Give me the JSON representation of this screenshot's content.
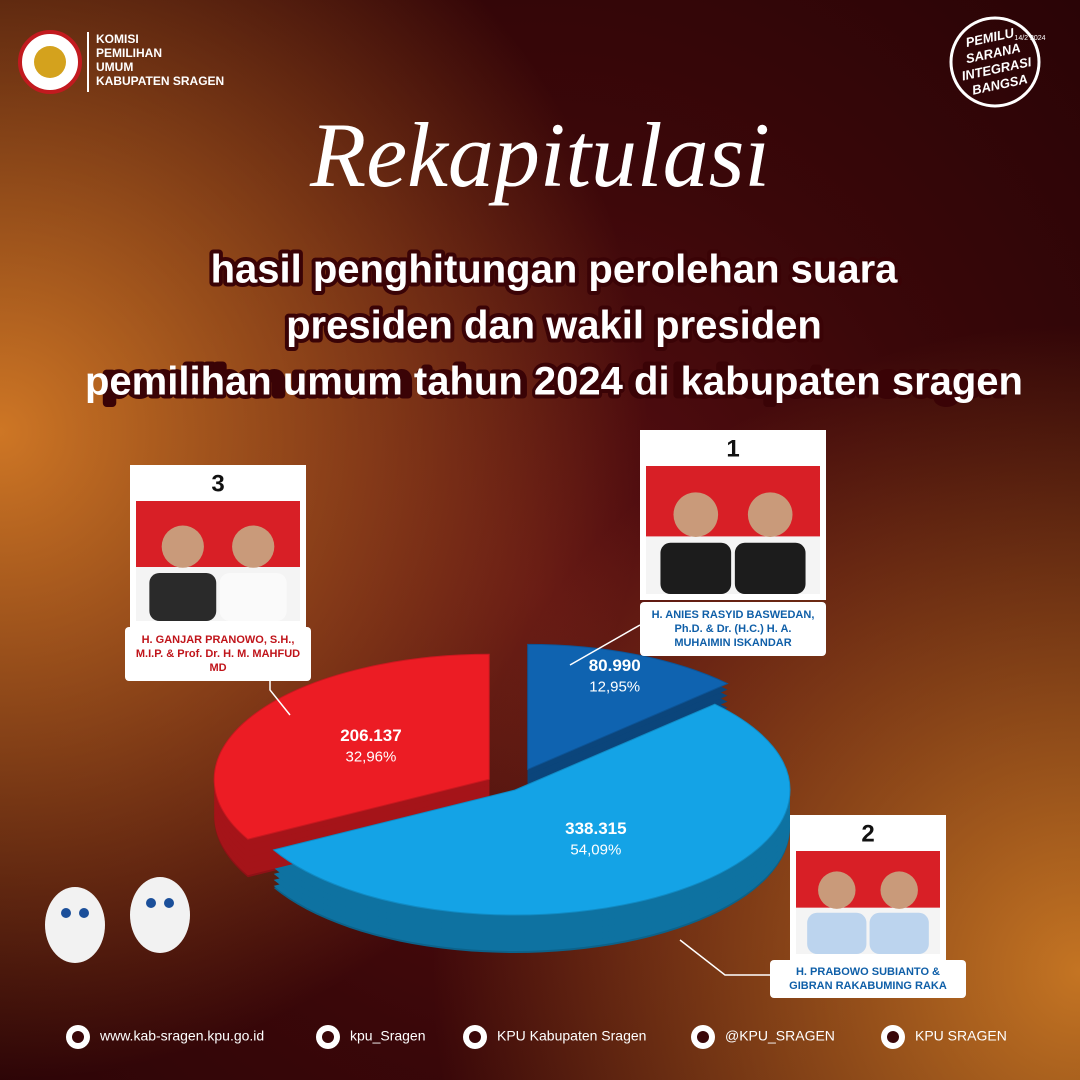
{
  "header": {
    "org_lines": [
      "KOMISI",
      "PEMILIHAN",
      "UMUM",
      "KABUPATEN SRAGEN"
    ],
    "badge_lines": [
      "PEMILU",
      "SARANA",
      "INTEGRASI",
      "BANGSA"
    ],
    "badge_date": "14/2 2024",
    "title": "Rekapitulasi",
    "subtitle_lines": [
      "hasil penghitungan perolehan suara",
      "presiden dan wakil presiden",
      "pemilihan umum tahun 2024 di kabupaten sragen"
    ]
  },
  "chart_data": {
    "type": "pie",
    "categories": [
      "H. ANIES RASYID BASWEDAN, Ph.D. & Dr. (H.C.) H. A. MUHAIMIN ISKANDAR",
      "H. PRABOWO SUBIANTO & GIBRAN RAKABUMING RAKA",
      "H. GANJAR PRANOWO, S.H., M.I.P. & Prof. Dr. H. M. MAHFUD MD"
    ],
    "candidate_numbers": [
      1,
      2,
      3
    ],
    "values": [
      80990,
      338315,
      206137
    ],
    "value_labels": [
      "80.990",
      "338.315",
      "206.137"
    ],
    "shares": [
      12.95,
      54.09,
      32.96
    ],
    "share_labels": [
      "12,95%",
      "54,09%",
      "32,96%"
    ],
    "colors": [
      "#0f63b0",
      "#14a3e6",
      "#ec1c24"
    ]
  },
  "footer": {
    "links": [
      "www.kab-sragen.kpu.go.id",
      "kpu_Sragen",
      "KPU Kabupaten Sragen",
      "@KPU_SRAGEN",
      "KPU SRAGEN"
    ]
  }
}
